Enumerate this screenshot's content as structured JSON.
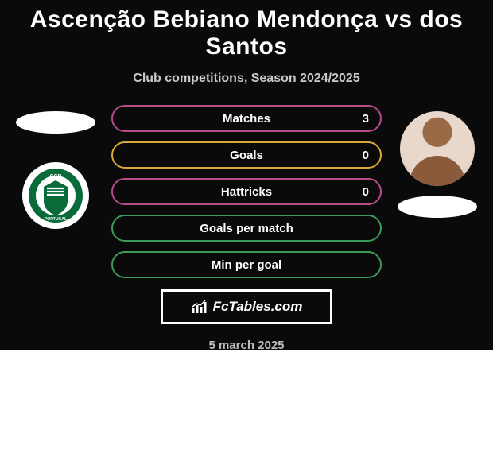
{
  "title": "Ascenção Bebiano Mendonça vs dos Santos",
  "subtitle": "Club competitions, Season 2024/2025",
  "stats": [
    {
      "label": "Matches",
      "value": "3",
      "border": "#b84b8a"
    },
    {
      "label": "Goals",
      "value": "0",
      "border": "#d6a93a"
    },
    {
      "label": "Hattricks",
      "value": "0",
      "border": "#b84b8a"
    },
    {
      "label": "Goals per match",
      "value": "",
      "border": "#3c9a5a"
    },
    {
      "label": "Min per goal",
      "value": "",
      "border": "#3c9a5a"
    }
  ],
  "brand": "FcTables.com",
  "date": "5 march 2025",
  "colors": {
    "bg": "#0a0a0a",
    "text": "#ffffff",
    "muted": "#c9c9c9",
    "date": "#bdbdbd"
  },
  "club_badge": {
    "name": "sporting-cp",
    "ring_color": "#0a6b3a",
    "text": "SCP",
    "subtext": "SPORTING"
  }
}
